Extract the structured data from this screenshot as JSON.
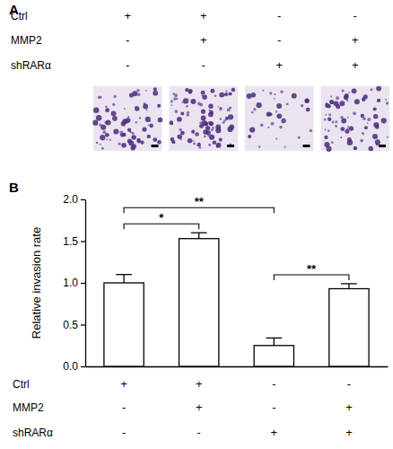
{
  "panel_labels": [
    "A",
    "B"
  ],
  "panel_a": {
    "conditions": [
      {
        "name": "Ctrl",
        "signs": [
          "+",
          "+",
          "-",
          "-"
        ]
      },
      {
        "name": "MMP2",
        "signs": [
          "-",
          "+",
          "-",
          "+"
        ]
      },
      {
        "name": "shRARα",
        "signs": [
          "-",
          "-",
          "+",
          "+"
        ]
      }
    ]
  },
  "chart_data": {
    "type": "bar",
    "categories": [
      null,
      null,
      null,
      null
    ],
    "values": [
      1.0,
      1.53,
      0.25,
      0.93
    ],
    "errors": [
      0.1,
      0.07,
      0.09,
      0.06
    ],
    "color": "#ffffff",
    "y_label": "Relative invasion rate",
    "ylim": [
      0,
      2
    ],
    "yticks": [
      {
        "value": 0,
        "label": "0.0"
      },
      {
        "value": 0.5,
        "label": "0.5"
      },
      {
        "value": 1,
        "label": "1.0"
      },
      {
        "value": 1.5,
        "label": "1.5"
      },
      {
        "value": 2,
        "label": "2.0"
      }
    ],
    "tick_labels": "y",
    "comparisons": [
      {
        "pair": [
          0,
          1
        ],
        "label": "*"
      },
      {
        "pair": [
          0,
          2
        ],
        "label": "**"
      },
      {
        "pair": [
          2,
          3
        ],
        "label": "**"
      }
    ],
    "condition_table": [
      {
        "name": "Ctrl",
        "signs": [
          "+",
          "+",
          "-",
          "-"
        ]
      },
      {
        "name": "MMP2",
        "signs": [
          "-",
          "+",
          "-",
          "+"
        ]
      },
      {
        "name": "shRARα",
        "signs": [
          "-",
          "-",
          "+",
          "+"
        ]
      }
    ]
  }
}
